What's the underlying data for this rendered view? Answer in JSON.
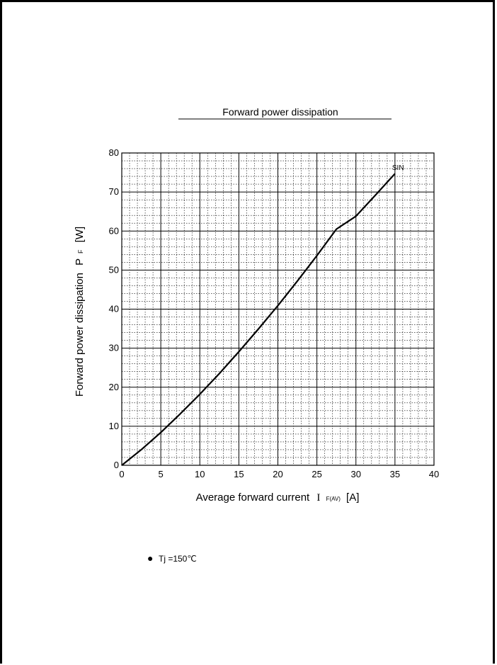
{
  "chart_data": {
    "type": "line",
    "title": "Forward power dissipation",
    "ylabel_main": "Forward power dissipation",
    "ylabel_symbol": "P",
    "ylabel_subscript": "F",
    "ylabel_unit": "[W]",
    "xlabel_main": "Average forward current",
    "xlabel_symbol": "I",
    "xlabel_subscript": "F(AV)",
    "xlabel_unit": "[A]",
    "xlim": [
      0,
      40
    ],
    "ylim": [
      0,
      80
    ],
    "x_ticks": [
      0,
      5,
      10,
      15,
      20,
      25,
      30,
      35,
      40
    ],
    "y_ticks": [
      0,
      10,
      20,
      30,
      40,
      50,
      60,
      70,
      80
    ],
    "grid": true,
    "series": [
      {
        "name": "SIN",
        "color": "#000000",
        "x": [
          0,
          2.5,
          5,
          7.5,
          10,
          12.5,
          15,
          17.5,
          20,
          22.5,
          25,
          27.5,
          30,
          32.5,
          35
        ],
        "y": [
          0,
          4.0,
          8.4,
          13.2,
          18.2,
          23.5,
          29.1,
          34.9,
          40.9,
          47.2,
          53.7,
          60.5,
          63.8,
          69.2,
          74.7
        ]
      }
    ]
  },
  "note": {
    "bullet": "●",
    "text": "Tj =150℃"
  }
}
